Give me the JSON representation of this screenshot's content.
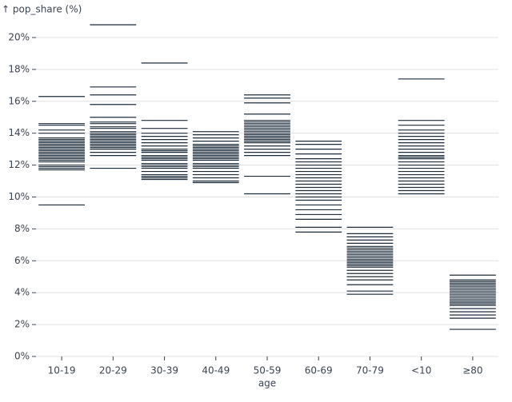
{
  "chart_data": {
    "type": "tick",
    "y_label": "↑ pop_share (%)",
    "x_label": "age",
    "categories": [
      "10-19",
      "20-29",
      "30-39",
      "40-49",
      "50-59",
      "60-69",
      "70-79",
      "<10",
      "≥80"
    ],
    "values": [
      [
        16.3,
        14.6,
        14.5,
        14.2,
        14.0,
        13.7,
        13.6,
        13.5,
        13.4,
        13.3,
        13.2,
        13.1,
        13.0,
        12.9,
        12.8,
        12.7,
        12.6,
        12.5,
        12.4,
        12.3,
        12.2,
        12.0,
        11.9,
        11.8,
        11.7,
        9.5
      ],
      [
        20.8,
        16.9,
        16.4,
        15.8,
        15.0,
        14.7,
        14.6,
        14.4,
        14.3,
        14.1,
        14.0,
        13.9,
        13.8,
        13.7,
        13.6,
        13.5,
        13.4,
        13.3,
        13.2,
        13.1,
        13.0,
        12.8,
        12.6,
        11.8
      ],
      [
        18.4,
        14.8,
        14.3,
        14.0,
        13.8,
        13.6,
        13.4,
        13.2,
        13.0,
        12.9,
        12.8,
        12.6,
        12.5,
        12.4,
        12.3,
        12.1,
        12.0,
        11.9,
        11.8,
        11.6,
        11.4,
        11.3,
        11.2,
        11.1
      ],
      [
        14.1,
        13.9,
        13.7,
        13.5,
        13.3,
        13.2,
        13.1,
        13.0,
        12.9,
        12.8,
        12.7,
        12.6,
        12.5,
        12.4,
        12.3,
        12.1,
        12.0,
        11.9,
        11.8,
        11.6,
        11.4,
        11.2,
        11.0,
        10.9
      ],
      [
        16.4,
        16.2,
        15.9,
        15.2,
        14.8,
        14.7,
        14.6,
        14.5,
        14.4,
        14.3,
        14.2,
        14.1,
        14.0,
        13.9,
        13.8,
        13.7,
        13.6,
        13.5,
        13.4,
        13.2,
        13.0,
        12.8,
        12.6,
        11.3,
        10.2
      ],
      [
        13.5,
        13.3,
        13.0,
        12.7,
        12.4,
        12.2,
        12.0,
        11.8,
        11.6,
        11.4,
        11.2,
        11.0,
        10.8,
        10.6,
        10.4,
        10.2,
        10.0,
        9.8,
        9.5,
        9.2,
        8.9,
        8.6,
        8.1,
        7.8
      ],
      [
        8.1,
        7.7,
        7.5,
        7.3,
        7.1,
        6.9,
        6.8,
        6.7,
        6.6,
        6.5,
        6.4,
        6.3,
        6.2,
        6.1,
        6.0,
        5.9,
        5.8,
        5.7,
        5.6,
        5.4,
        5.2,
        5.0,
        4.8,
        4.5,
        4.1,
        3.9
      ],
      [
        17.4,
        14.8,
        14.5,
        14.2,
        14.0,
        13.8,
        13.6,
        13.4,
        13.2,
        13.0,
        12.8,
        12.6,
        12.5,
        12.4,
        12.2,
        12.0,
        11.8,
        11.6,
        11.4,
        11.2,
        11.0,
        10.8,
        10.6,
        10.4,
        10.2
      ],
      [
        5.1,
        4.8,
        4.7,
        4.6,
        4.5,
        4.4,
        4.3,
        4.2,
        4.1,
        4.0,
        3.9,
        3.8,
        3.7,
        3.6,
        3.5,
        3.4,
        3.3,
        3.2,
        3.0,
        2.8,
        2.6,
        2.4,
        1.7
      ]
    ],
    "color": "#1c2b3a",
    "ylim": [
      0,
      21
    ],
    "yticks": [
      {
        "value": 0,
        "label": "0%"
      },
      {
        "value": 2,
        "label": "2%"
      },
      {
        "value": 4,
        "label": "4%"
      },
      {
        "value": 6,
        "label": "6%"
      },
      {
        "value": 8,
        "label": "8%"
      },
      {
        "value": 10,
        "label": "10%"
      },
      {
        "value": 12,
        "label": "12%"
      },
      {
        "value": 14,
        "label": "14%"
      },
      {
        "value": 16,
        "label": "16%"
      },
      {
        "value": 18,
        "label": "18%"
      },
      {
        "value": 20,
        "label": "20%"
      }
    ],
    "grid": true
  }
}
